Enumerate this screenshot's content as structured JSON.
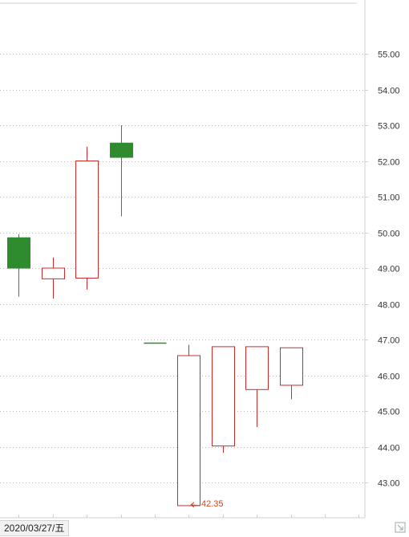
{
  "chart_data": {
    "type": "candlestick",
    "y_ticks": [
      "55.00",
      "54.00",
      "53.00",
      "52.00",
      "51.00",
      "50.00",
      "49.00",
      "48.00",
      "47.00",
      "46.00",
      "45.00",
      "44.00",
      "43.00"
    ],
    "ylim": [
      42.2,
      56.4
    ],
    "grid": true,
    "candles": [
      {
        "open": 49.85,
        "close": 49.0,
        "high": 49.95,
        "low": 48.2
      },
      {
        "open": 48.7,
        "close": 49.0,
        "high": 49.3,
        "low": 48.15
      },
      {
        "open": 48.72,
        "close": 52.0,
        "high": 52.4,
        "low": 48.4
      },
      {
        "open": 52.5,
        "close": 52.1,
        "high": 53.0,
        "low": 50.45
      },
      {
        "open": 46.9,
        "close": 46.9,
        "high": 46.9,
        "low": 46.9
      },
      {
        "open": 42.35,
        "close": 46.55,
        "high": 46.85,
        "low": 42.35
      },
      {
        "open": 44.02,
        "close": 46.8,
        "high": 46.8,
        "low": 43.83
      },
      {
        "open": 45.6,
        "close": 46.8,
        "high": 46.8,
        "low": 44.55
      },
      {
        "open": 45.72,
        "close": 46.77,
        "high": 46.77,
        "low": 45.33
      }
    ],
    "min_label": "42.35",
    "date_label": "2020/03/27/五",
    "colors": {
      "up": "#cc2b2b",
      "down": "#2e8b2e",
      "grid": "#b8b8b8",
      "axis": "#d0d0d0",
      "min_label": "#d0451b"
    }
  }
}
